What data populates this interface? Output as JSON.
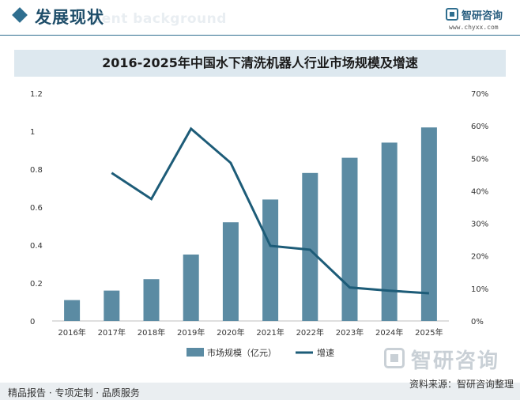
{
  "header": {
    "title": "发展现状",
    "ghost_text": "cent background",
    "brand_name": "智研咨询",
    "brand_url": "www.chyxx.com"
  },
  "chart_data": {
    "type": "bar",
    "title": "2016-2025年中国水下清洗机器人行业市场规模及增速",
    "categories": [
      "2016年",
      "2017年",
      "2018年",
      "2019年",
      "2020年",
      "2021年",
      "2022年",
      "2023年",
      "2024年",
      "2025年"
    ],
    "series": [
      {
        "name": "市场规模（亿元）",
        "type": "bar",
        "axis": "left",
        "color": "#5b8ba3",
        "values": [
          0.11,
          0.16,
          0.22,
          0.35,
          0.52,
          0.64,
          0.78,
          0.86,
          0.94,
          1.02
        ]
      },
      {
        "name": "增速",
        "type": "line",
        "axis": "right",
        "color": "#1d5c78",
        "values": [
          null,
          45.5,
          37.5,
          59.1,
          48.6,
          23.1,
          21.9,
          10.3,
          9.3,
          8.5
        ]
      }
    ],
    "left_axis": {
      "min": 0,
      "max": 1.2,
      "ticks": [
        "0",
        "0.2",
        "0.4",
        "0.6",
        "0.8",
        "1",
        "1.2"
      ]
    },
    "right_axis": {
      "min": 0,
      "max": 70,
      "ticks": [
        "0%",
        "10%",
        "20%",
        "30%",
        "40%",
        "50%",
        "60%",
        "70%"
      ]
    },
    "grid": false,
    "legend_position": "bottom"
  },
  "footer": {
    "left_text": "精品报告 · 专项定制 · 品质服务",
    "source_text": "资料来源：智研咨询整理",
    "watermark_brand": "智研咨询"
  }
}
